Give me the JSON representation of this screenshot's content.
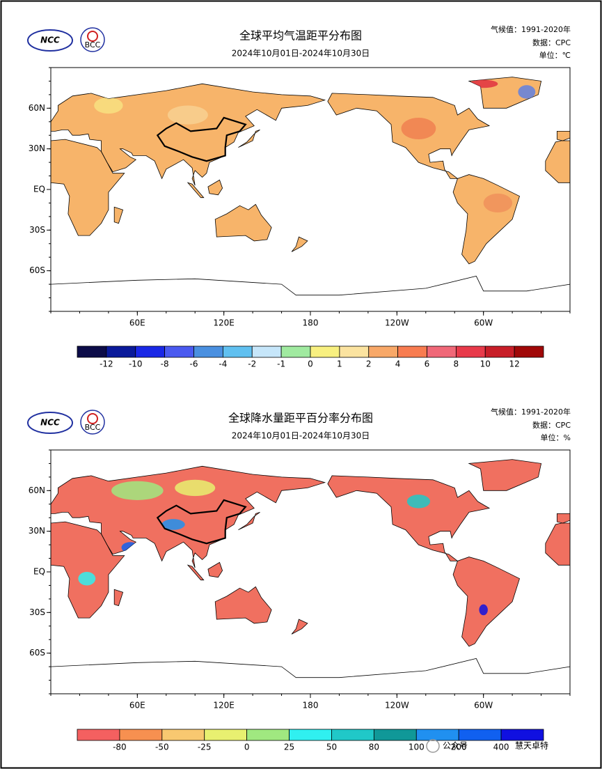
{
  "maps": [
    {
      "logos": [
        "NCC",
        "BCC"
      ],
      "title": "全球平均气温距平分布图",
      "subtitle": "2024年10月01日-2024年10月30日",
      "climate": "气候值：1991-2020年",
      "source": "数据：CPC",
      "unit": "单位：℃",
      "lat_labels": [
        "60N",
        "30N",
        "EQ",
        "30S",
        "60S"
      ],
      "lon_labels": [
        "60E",
        "120E",
        "180",
        "120W",
        "60W"
      ],
      "colorbar": {
        "colors": [
          "#0c0c48",
          "#0a1a9a",
          "#1a28e6",
          "#4a5af0",
          "#4a90e0",
          "#60c0f0",
          "#c6e6fa",
          "#a0eaa0",
          "#f8f080",
          "#fbe3a0",
          "#f8a868",
          "#f87c50",
          "#f06878",
          "#e83a4a",
          "#c81e28",
          "#a00808"
        ],
        "labels": [
          "-12",
          "-10",
          "-8",
          "-6",
          "-4",
          "-2",
          "-1",
          "0",
          "1",
          "2",
          "4",
          "6",
          "8",
          "10",
          "12"
        ]
      }
    },
    {
      "logos": [
        "NCC",
        "BCC"
      ],
      "title": "全球降水量距平百分率分布图",
      "subtitle": "2024年10月01日-2024年10月30日",
      "climate": "气候值：1991-2020年",
      "source": "数据：CPC",
      "unit": "单位：%",
      "lat_labels": [
        "60N",
        "30N",
        "EQ",
        "30S",
        "60S"
      ],
      "lon_labels": [
        "60E",
        "120E",
        "180",
        "120W",
        "60W"
      ],
      "colorbar": {
        "colors": [
          "#f46060",
          "#f79050",
          "#f8c870",
          "#e8f070",
          "#a0e880",
          "#30f0f0",
          "#20c8c8",
          "#109898",
          "#2090f0",
          "#1060f0",
          "#1010e0"
        ],
        "labels": [
          "-80",
          "-50",
          "-25",
          "0",
          "25",
          "50",
          "80",
          "100",
          "200",
          "400"
        ]
      }
    }
  ],
  "watermark": [
    "公众号",
    "慧天卓特"
  ]
}
